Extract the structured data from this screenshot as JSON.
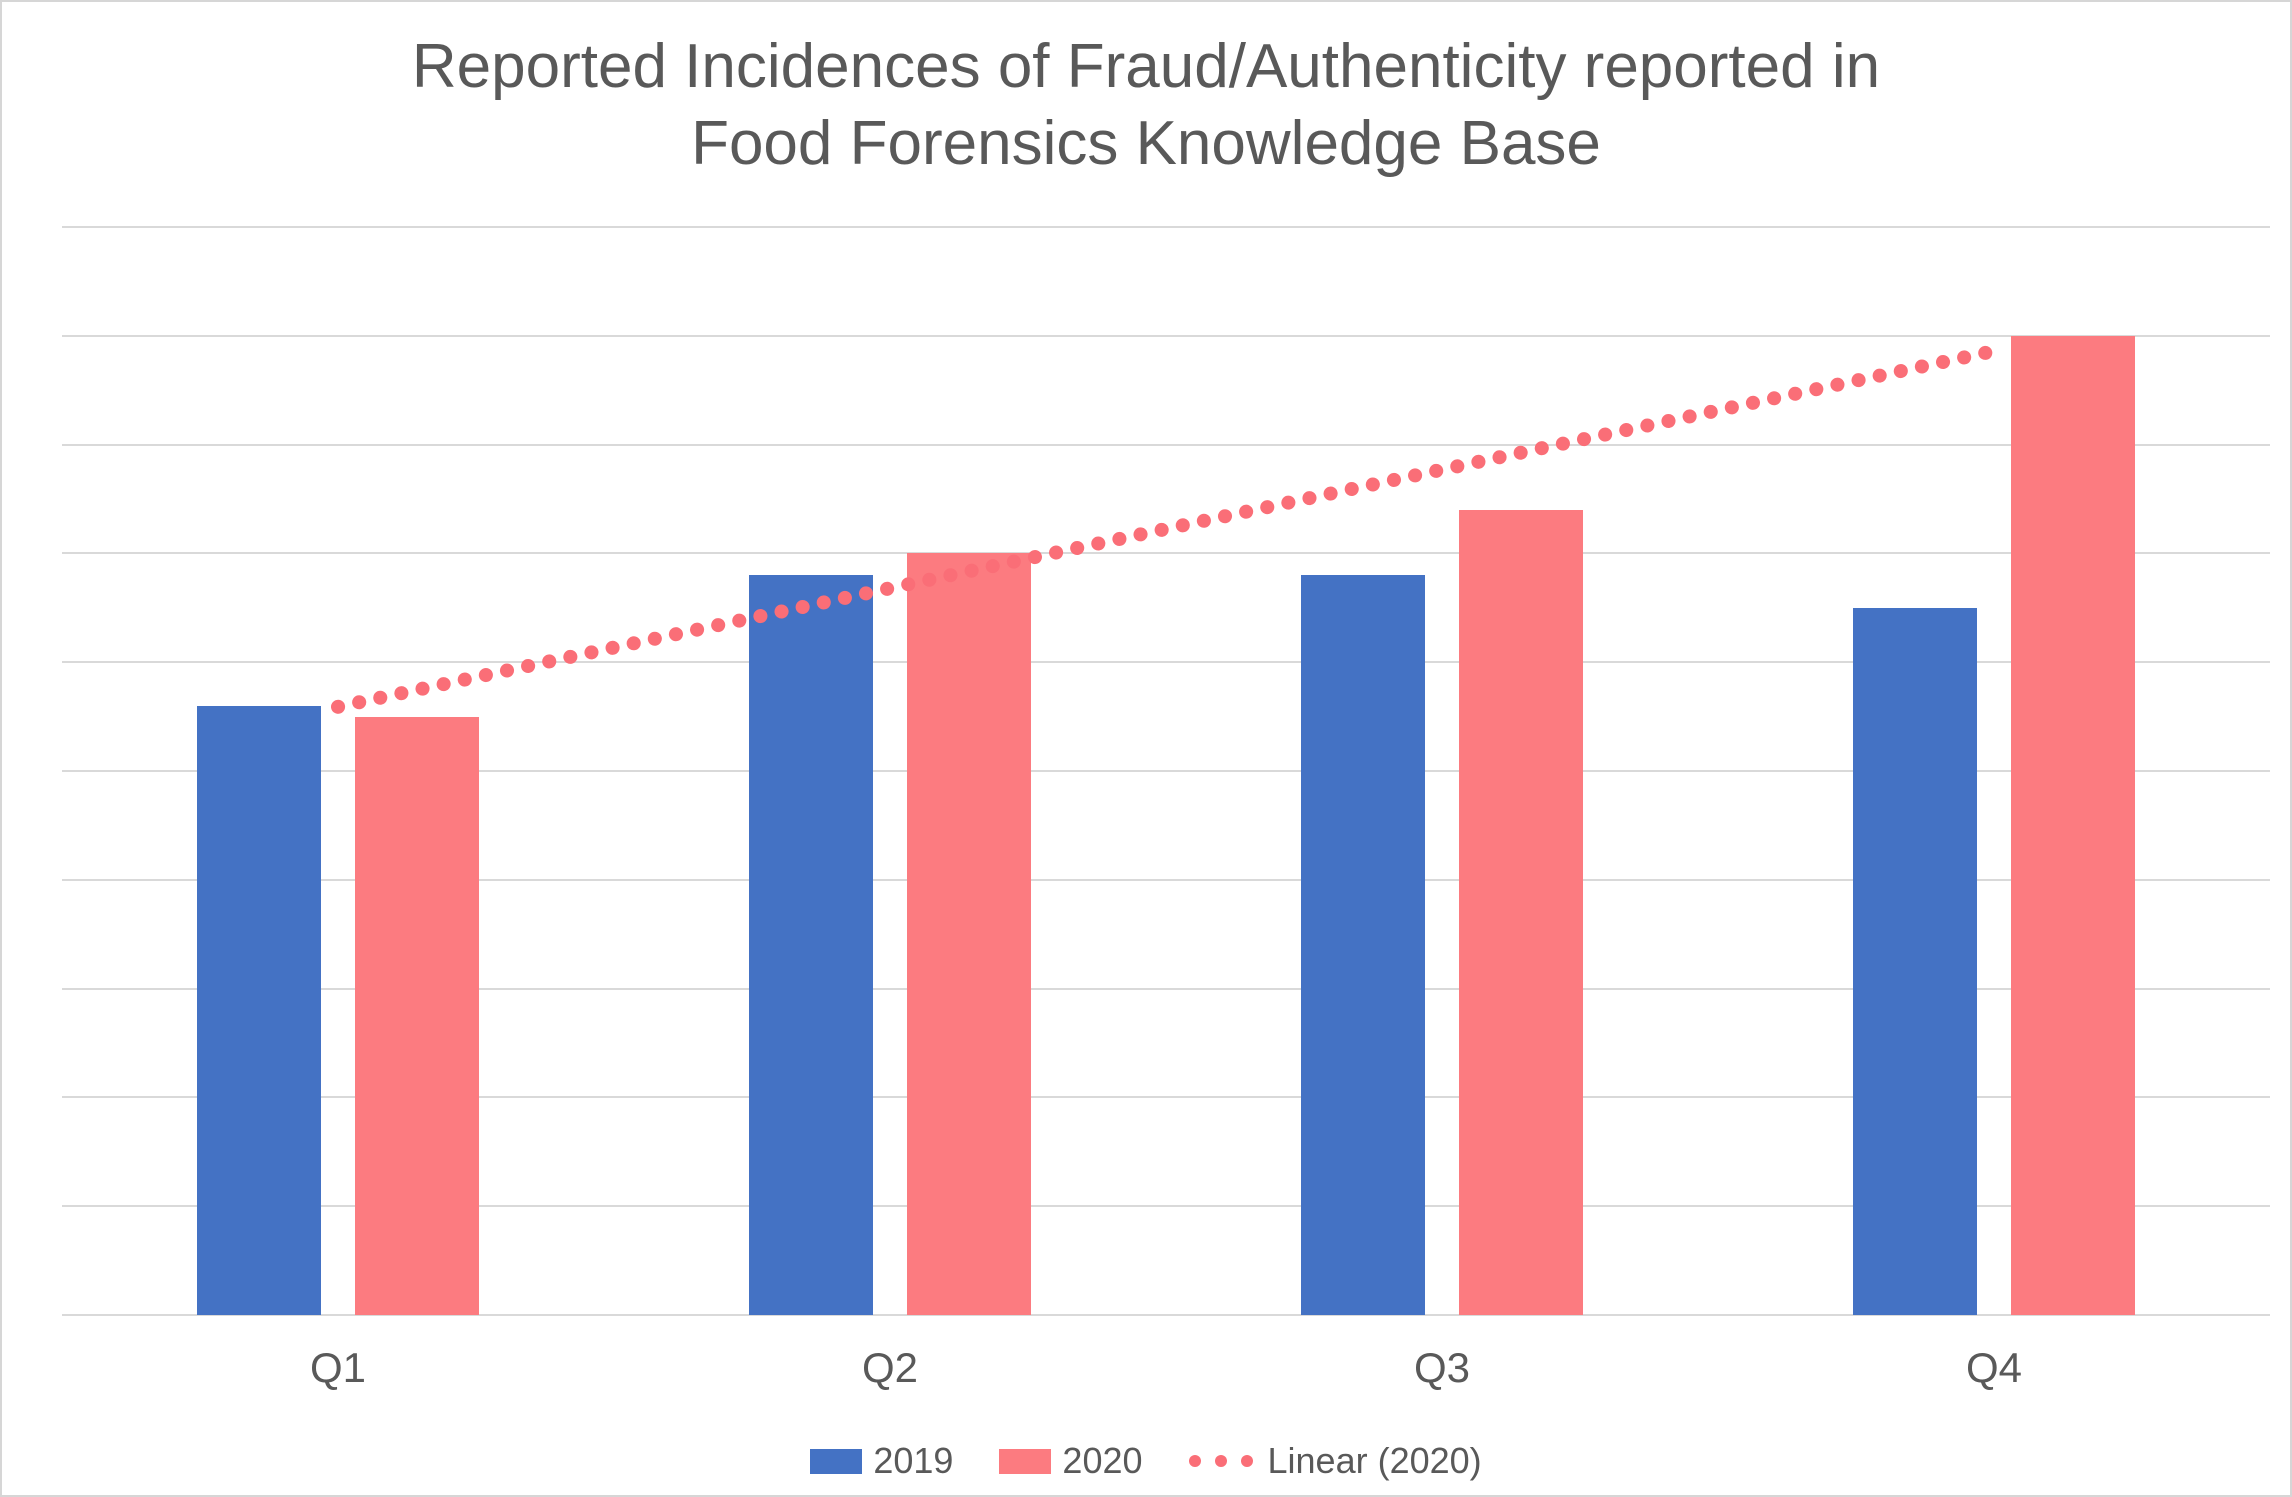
{
  "window": {
    "background": "#ffffff",
    "border_color": "#d6d6d6"
  },
  "chart_data": {
    "type": "bar",
    "title": "Reported Incidences of Fraud/Authenticity reported in Food Forensics Knowledge Base",
    "title_lines": [
      "Reported Incidences of Fraud/Authenticity reported in",
      "Food Forensics Knowledge Base"
    ],
    "title_color": "#595959",
    "categories": [
      "Q1",
      "Q2",
      "Q3",
      "Q4"
    ],
    "series": [
      {
        "name": "2019",
        "color": "#4472c4",
        "values": [
          5.6,
          6.8,
          6.8,
          6.5
        ]
      },
      {
        "name": "2020",
        "color": "#fc7b80",
        "values": [
          5.5,
          7.0,
          7.4,
          9.0
        ]
      }
    ],
    "trendline": {
      "label": "Linear (2020)",
      "of_series": "2020",
      "fit": "linear",
      "style": "dotted",
      "color": "#fa6e77",
      "fit_values_at_Q1_Q4": [
        5.6,
        8.9
      ]
    },
    "xlabel": "",
    "ylabel": "",
    "ylim": [
      0,
      10
    ],
    "y_gridline_interval": 1,
    "y_axis_labels_shown": false,
    "gridlines": "horizontal",
    "gridline_color": "#d9d9d9",
    "axis_label_color": "#595959",
    "legend_position": "bottom-center"
  }
}
